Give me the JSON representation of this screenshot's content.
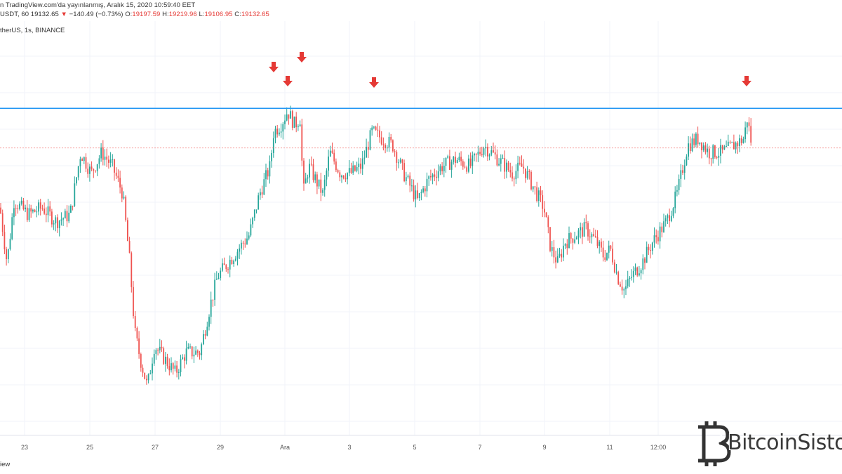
{
  "header": {
    "published_text": "n TradingView.com'da yayınlanmış, Aralık 15, 2020 10:59:40 EET",
    "symbol_short": "USDT, 60",
    "price": "19132.65",
    "change_arrow": "▼",
    "change": "−140.49 (−0.73%)",
    "o_label": "O:",
    "o_value": "19197.59",
    "h_label": "H:",
    "h_value": "19219.96",
    "l_label": "L:",
    "l_value": "19106.95",
    "c_label": "C:",
    "c_value": "19132.65"
  },
  "symbol_line": "therUS, 1s, BINANCE",
  "footer_text": "iew",
  "logo": {
    "text": "BitcoinSisto",
    "icon": "bitcoin-logo-icon"
  },
  "colors": {
    "up": "#26a69a",
    "down": "#ef5350",
    "resistance": "#2196f3",
    "arrow": "#e53935",
    "grid": "#f0f3fa",
    "price_line": "#ef5350"
  },
  "chart_data": {
    "type": "candlestick",
    "x_tick_labels": [
      "23",
      "25",
      "27",
      "29",
      "Ara",
      "3",
      "5",
      "7",
      "9",
      "11",
      "12:00"
    ],
    "resistance_level": 19420,
    "current_price": 19132.65,
    "close_path": [
      [
        0,
        18700
      ],
      [
        10,
        18300
      ],
      [
        20,
        18750
      ],
      [
        40,
        18650
      ],
      [
        60,
        18700
      ],
      [
        80,
        18600
      ],
      [
        100,
        18650
      ],
      [
        115,
        19100
      ],
      [
        130,
        18950
      ],
      [
        145,
        19100
      ],
      [
        160,
        19000
      ],
      [
        175,
        18800
      ],
      [
        185,
        18300
      ],
      [
        192,
        17800
      ],
      [
        200,
        17600
      ],
      [
        210,
        17400
      ],
      [
        220,
        17700
      ],
      [
        235,
        17600
      ],
      [
        250,
        17500
      ],
      [
        265,
        17650
      ],
      [
        285,
        17650
      ],
      [
        300,
        18000
      ],
      [
        310,
        18200
      ],
      [
        325,
        18300
      ],
      [
        340,
        18400
      ],
      [
        355,
        18500
      ],
      [
        370,
        18800
      ],
      [
        385,
        19000
      ],
      [
        390,
        19250
      ],
      [
        400,
        19300
      ],
      [
        410,
        19400
      ],
      [
        420,
        19300
      ],
      [
        428,
        19350
      ],
      [
        432,
        18800
      ],
      [
        440,
        19000
      ],
      [
        450,
        18900
      ],
      [
        460,
        18800
      ],
      [
        470,
        19100
      ],
      [
        485,
        18950
      ],
      [
        500,
        18950
      ],
      [
        515,
        19000
      ],
      [
        530,
        19250
      ],
      [
        545,
        19200
      ],
      [
        560,
        19150
      ],
      [
        575,
        18950
      ],
      [
        595,
        18750
      ],
      [
        610,
        18900
      ],
      [
        630,
        19000
      ],
      [
        650,
        19050
      ],
      [
        670,
        19000
      ],
      [
        690,
        19150
      ],
      [
        710,
        19050
      ],
      [
        730,
        18950
      ],
      [
        745,
        19000
      ],
      [
        760,
        18850
      ],
      [
        775,
        18700
      ],
      [
        785,
        18400
      ],
      [
        795,
        18300
      ],
      [
        805,
        18450
      ],
      [
        820,
        18500
      ],
      [
        835,
        18550
      ],
      [
        850,
        18450
      ],
      [
        860,
        18350
      ],
      [
        870,
        18400
      ],
      [
        880,
        18200
      ],
      [
        890,
        18100
      ],
      [
        900,
        18200
      ],
      [
        915,
        18300
      ],
      [
        930,
        18450
      ],
      [
        950,
        18600
      ],
      [
        965,
        18800
      ],
      [
        980,
        19150
      ],
      [
        995,
        19200
      ],
      [
        1010,
        19100
      ],
      [
        1030,
        19100
      ],
      [
        1045,
        19150
      ],
      [
        1060,
        19200
      ],
      [
        1065,
        19350
      ],
      [
        1072,
        19130
      ]
    ],
    "resistance_touches_x": [
      390,
      410,
      430,
      533,
      1064
    ]
  }
}
